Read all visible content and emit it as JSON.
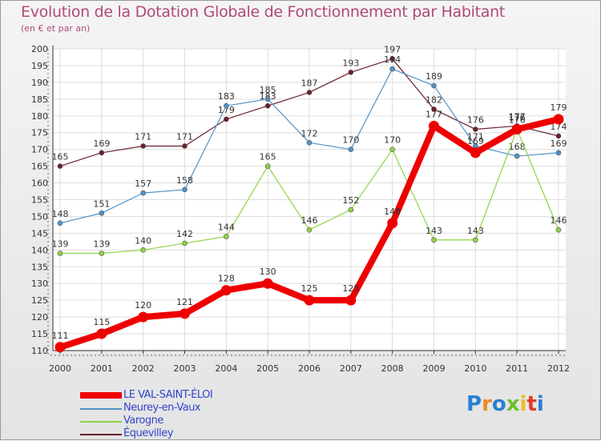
{
  "title": "Evolution de la Dotation Globale de Fonctionnement par Habitant",
  "subtitle": "(en € et par an)",
  "chart_data": {
    "type": "line",
    "title": "Evolution de la Dotation Globale de Fonctionnement par Habitant",
    "subtitle": "(en € et par an)",
    "xlabel": "",
    "ylabel": "",
    "x": [
      "2000",
      "2001",
      "2002",
      "2003",
      "2004",
      "2005",
      "2006",
      "2007",
      "2008",
      "2009",
      "2010",
      "2011",
      "2012"
    ],
    "ylim": [
      110,
      200
    ],
    "yticks": [
      110,
      115,
      120,
      125,
      130,
      135,
      140,
      145,
      150,
      155,
      160,
      165,
      170,
      175,
      180,
      185,
      190,
      195,
      200
    ],
    "grid": true,
    "legend_position": "bottom-left",
    "series": [
      {
        "name": "Équevilley",
        "color": "#6b1f2a",
        "values": [
          165,
          169,
          171,
          171,
          179,
          183,
          187,
          193,
          197,
          182,
          176,
          177,
          174
        ]
      },
      {
        "name": "Neurey-en-Vaux",
        "color": "#4f93c9",
        "values": [
          148,
          151,
          157,
          158,
          183,
          185,
          172,
          170,
          194,
          189,
          171,
          168,
          169
        ]
      },
      {
        "name": "Varogne",
        "color": "#8fd444",
        "values": [
          139,
          139,
          140,
          142,
          144,
          165,
          146,
          152,
          170,
          143,
          143,
          176,
          146
        ]
      },
      {
        "name": "LE VAL-SAINT-ÉLOI",
        "color": "#ee0000",
        "values": [
          111,
          115,
          120,
          121,
          128,
          130,
          125,
          125,
          148,
          177,
          169,
          176,
          179
        ]
      }
    ]
  },
  "legend": [
    {
      "label": "LE VAL-SAINT-ÉLOI",
      "color": "#ee0000"
    },
    {
      "label": "Neurey-en-Vaux",
      "color": "#4f93c9"
    },
    {
      "label": "Varogne",
      "color": "#8fd444"
    },
    {
      "label": "Équevilley",
      "color": "#6b1f2a"
    }
  ],
  "logo": {
    "text": "Proxiti",
    "letter_colors": [
      "#2a7fd4",
      "#f08a1c",
      "#2a7fd4",
      "#6cbf2a",
      "#e8c020",
      "#e03a2a",
      "#2a7fd4"
    ]
  }
}
